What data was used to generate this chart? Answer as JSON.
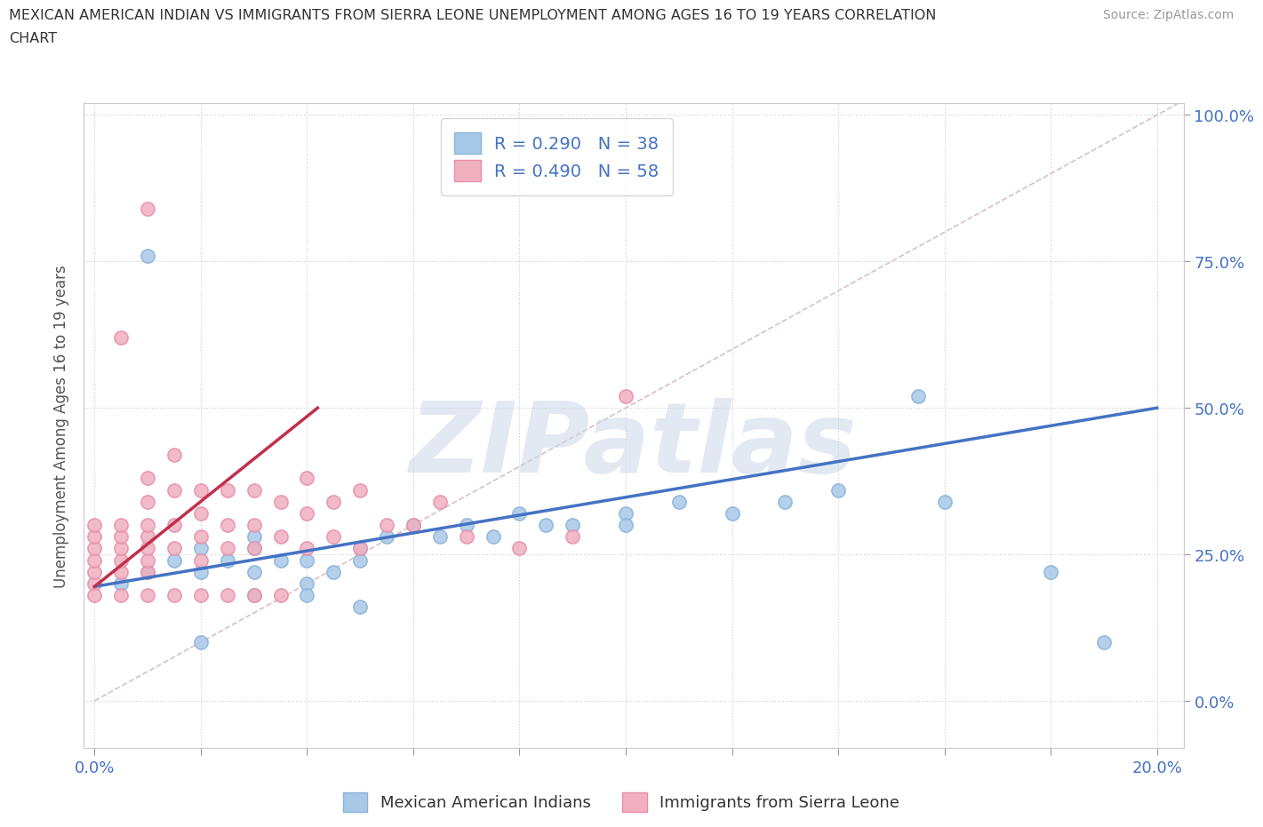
{
  "title_line1": "MEXICAN AMERICAN INDIAN VS IMMIGRANTS FROM SIERRA LEONE UNEMPLOYMENT AMONG AGES 16 TO 19 YEARS CORRELATION",
  "title_line2": "CHART",
  "source_text": "Source: ZipAtlas.com",
  "ylabel": "Unemployment Among Ages 16 to 19 years",
  "xlim": [
    -0.002,
    0.205
  ],
  "ylim": [
    -0.05,
    1.02
  ],
  "plot_ylim": [
    -0.08,
    1.02
  ],
  "watermark": "ZIPatlas",
  "legend_r_blue": "R = 0.290",
  "legend_n_blue": "N = 38",
  "legend_r_pink": "R = 0.490",
  "legend_n_pink": "N = 58",
  "legend_label_blue": "Mexican American Indians",
  "legend_label_pink": "Immigrants from Sierra Leone",
  "blue_color": "#a8c8e8",
  "pink_color": "#f0b0c0",
  "blue_edge_color": "#8ab4d8",
  "pink_edge_color": "#e890a8",
  "blue_line_color": "#4472c4",
  "pink_line_color": "#c0304a",
  "ref_line_color": "#d0b0b8",
  "ytick_values": [
    0.0,
    0.25,
    0.5,
    0.75,
    1.0
  ],
  "ytick_labels": [
    "0.0%",
    "25.0%",
    "50.0%",
    "75.0%",
    "100.0%"
  ],
  "xtick_values": [
    0.0,
    0.02,
    0.04,
    0.06,
    0.08,
    0.1,
    0.12,
    0.14,
    0.16,
    0.18,
    0.2
  ],
  "blue_scatter_x": [
    0.005,
    0.01,
    0.015,
    0.02,
    0.02,
    0.025,
    0.03,
    0.03,
    0.03,
    0.035,
    0.04,
    0.04,
    0.045,
    0.05,
    0.05,
    0.055,
    0.06,
    0.065,
    0.07,
    0.075,
    0.08,
    0.085,
    0.09,
    0.1,
    0.1,
    0.11,
    0.12,
    0.13,
    0.14,
    0.155,
    0.16,
    0.18,
    0.19,
    0.01,
    0.02,
    0.03,
    0.04,
    0.05
  ],
  "blue_scatter_y": [
    0.2,
    0.22,
    0.24,
    0.22,
    0.26,
    0.24,
    0.22,
    0.26,
    0.28,
    0.24,
    0.2,
    0.24,
    0.22,
    0.24,
    0.26,
    0.28,
    0.3,
    0.28,
    0.3,
    0.28,
    0.32,
    0.3,
    0.3,
    0.32,
    0.3,
    0.34,
    0.32,
    0.34,
    0.36,
    0.52,
    0.34,
    0.22,
    0.1,
    0.76,
    0.1,
    0.18,
    0.18,
    0.16
  ],
  "pink_scatter_x": [
    0.0,
    0.0,
    0.0,
    0.0,
    0.0,
    0.0,
    0.005,
    0.005,
    0.005,
    0.005,
    0.005,
    0.01,
    0.01,
    0.01,
    0.01,
    0.01,
    0.01,
    0.01,
    0.015,
    0.015,
    0.015,
    0.015,
    0.02,
    0.02,
    0.02,
    0.02,
    0.025,
    0.025,
    0.025,
    0.03,
    0.03,
    0.03,
    0.035,
    0.035,
    0.04,
    0.04,
    0.04,
    0.045,
    0.045,
    0.05,
    0.05,
    0.055,
    0.06,
    0.065,
    0.07,
    0.08,
    0.09,
    0.1,
    0.0,
    0.005,
    0.01,
    0.015,
    0.02,
    0.025,
    0.03,
    0.035,
    0.005,
    0.01
  ],
  "pink_scatter_y": [
    0.2,
    0.22,
    0.24,
    0.26,
    0.28,
    0.3,
    0.22,
    0.24,
    0.26,
    0.28,
    0.3,
    0.22,
    0.24,
    0.26,
    0.28,
    0.3,
    0.34,
    0.38,
    0.26,
    0.3,
    0.36,
    0.42,
    0.24,
    0.28,
    0.32,
    0.36,
    0.26,
    0.3,
    0.36,
    0.26,
    0.3,
    0.36,
    0.28,
    0.34,
    0.26,
    0.32,
    0.38,
    0.28,
    0.34,
    0.26,
    0.36,
    0.3,
    0.3,
    0.34,
    0.28,
    0.26,
    0.28,
    0.52,
    0.18,
    0.18,
    0.18,
    0.18,
    0.18,
    0.18,
    0.18,
    0.18,
    0.62,
    0.84
  ],
  "blue_trend_x": [
    0.0,
    0.2
  ],
  "blue_trend_y": [
    0.195,
    0.5
  ],
  "pink_trend_x": [
    0.0,
    0.042
  ],
  "pink_trend_y": [
    0.195,
    0.5
  ],
  "ref_line_x": [
    0.0,
    0.205
  ],
  "ref_line_y": [
    0.0,
    1.025
  ]
}
